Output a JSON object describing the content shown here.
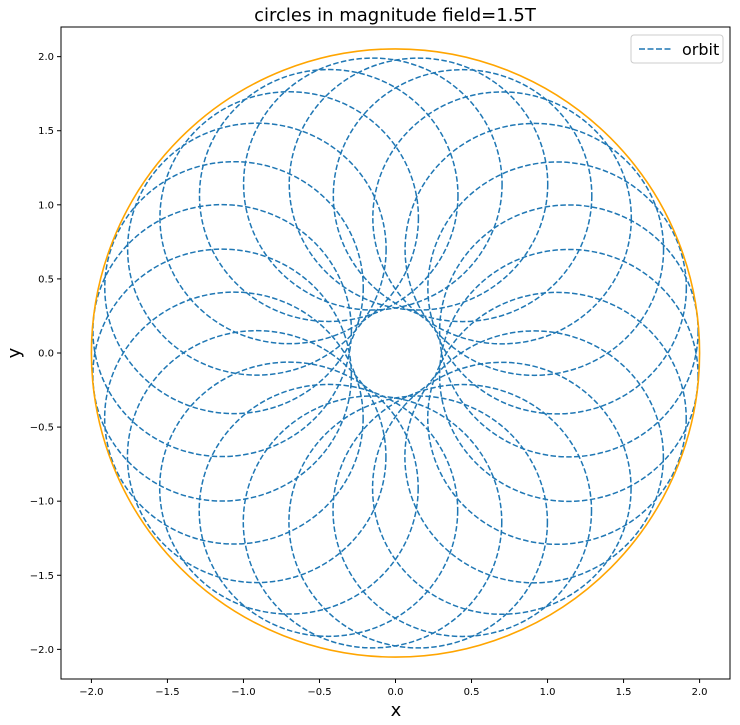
{
  "chart_data": {
    "type": "line",
    "title": "circles in magnitude field=1.5T",
    "xlabel": "x",
    "ylabel": "y",
    "xlim": [
      -2.2,
      2.2
    ],
    "ylim": [
      -2.2,
      2.2
    ],
    "xticks": [
      -2.0,
      -1.5,
      -1.0,
      -0.5,
      0.0,
      0.5,
      1.0,
      1.5,
      2.0
    ],
    "yticks": [
      -2.0,
      -1.5,
      -1.0,
      -0.5,
      0.0,
      0.5,
      1.0,
      1.5,
      2.0
    ],
    "xtick_labels": [
      "−2.0",
      "−1.5",
      "−1.0",
      "−0.5",
      "0.0",
      "0.5",
      "1.0",
      "1.5",
      "2.0"
    ],
    "ytick_labels": [
      "−2.0",
      "−1.5",
      "−1.0",
      "−0.5",
      "0.0",
      "0.5",
      "1.0",
      "1.5",
      "2.0"
    ],
    "grid": false,
    "legend": {
      "position": "top-right",
      "entries": [
        "orbit"
      ]
    },
    "colors": {
      "orbit": "#1f77b4",
      "boundary": "#ffa500"
    },
    "boundary": {
      "center": [
        0,
        0
      ],
      "radius": 2.0
    },
    "orbit_ring": {
      "center_distance": 1.15,
      "radius": 0.85,
      "count": 24
    }
  }
}
